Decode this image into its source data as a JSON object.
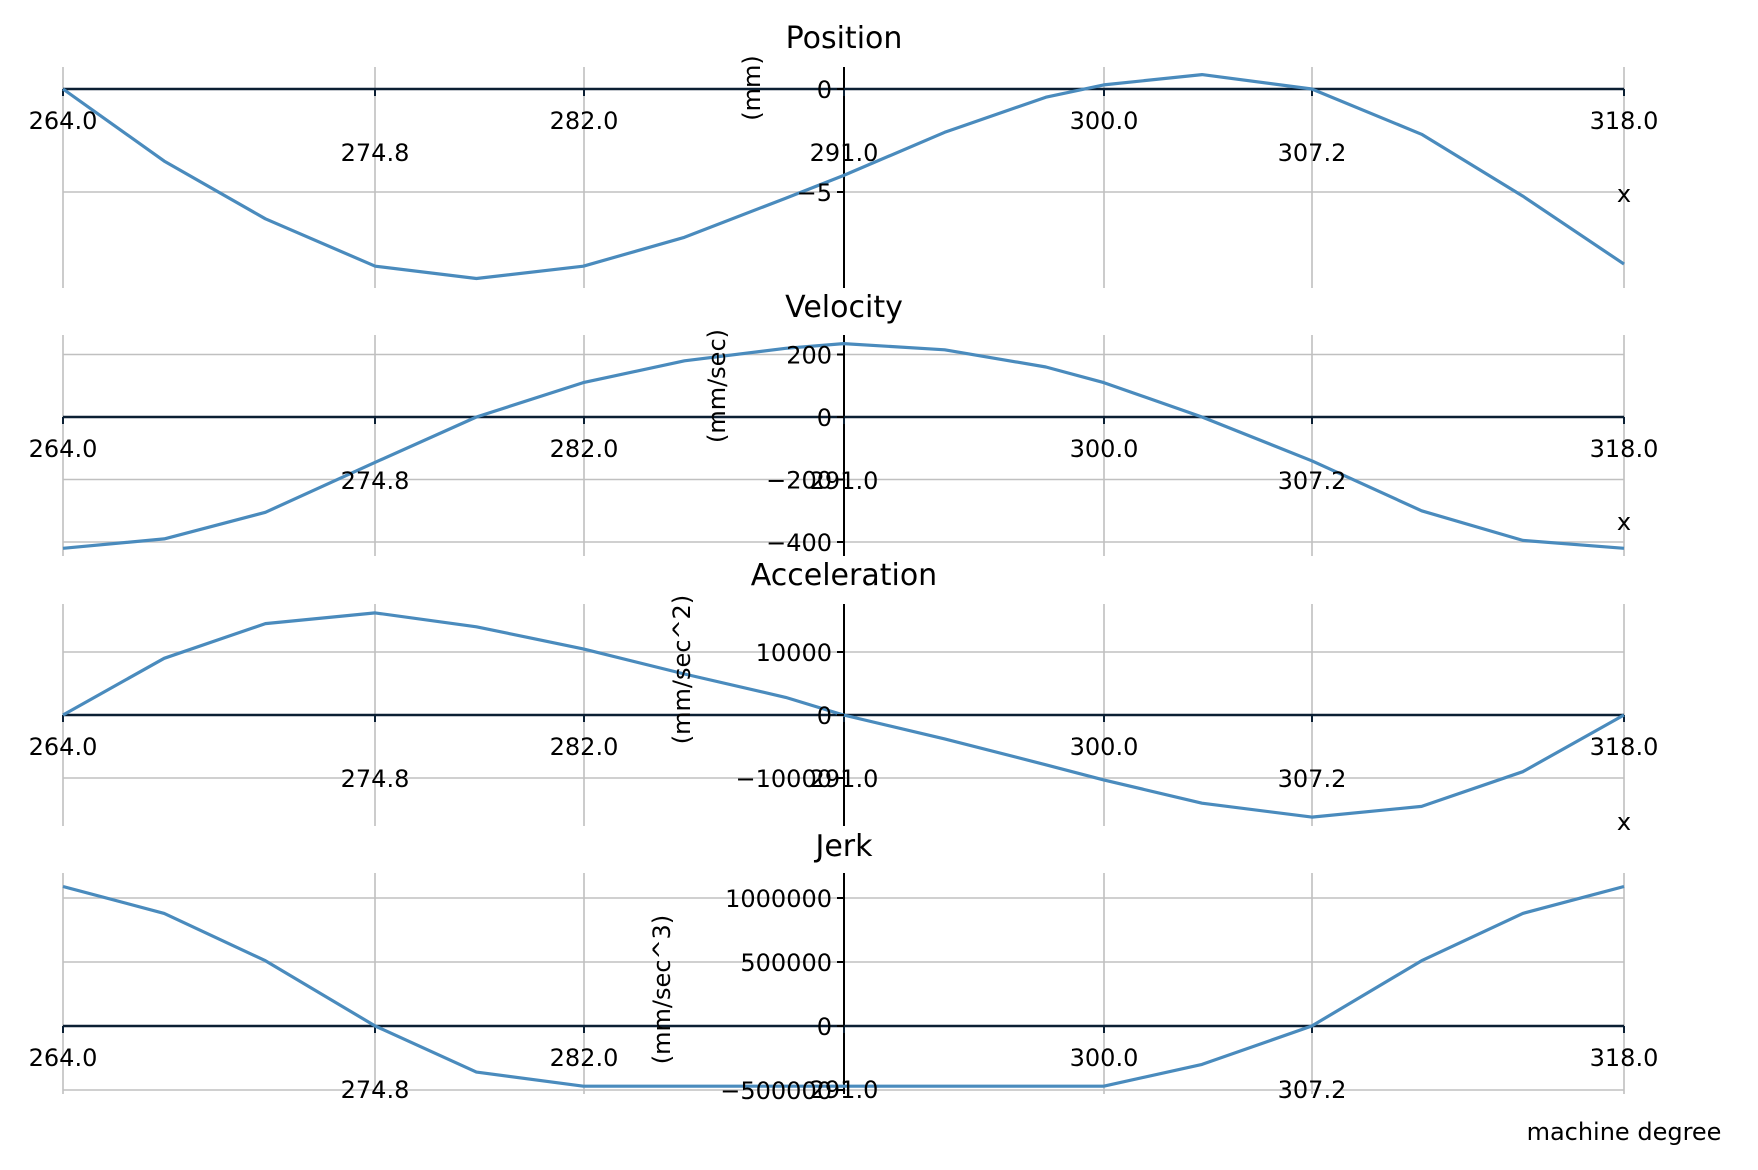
{
  "colors": {
    "curve": "#4a8bbd",
    "axis": "#0b1f33",
    "grid": "#c0c0c0"
  },
  "chart_data": [
    {
      "type": "line",
      "title": "Position",
      "ylabel": "(mm)",
      "xlabel": "x",
      "xlim": [
        264,
        318
      ],
      "ylim": [
        -10,
        1.5
      ],
      "x_ticks_major": [
        "264.0",
        "282.0",
        "300.0",
        "318.0"
      ],
      "x_ticks_minor": [
        "274.8",
        "291.0",
        "307.2"
      ],
      "y_ticks": [
        {
          "value": 0,
          "label": "0"
        },
        {
          "value": -5,
          "label": "−5"
        }
      ],
      "y_gridlines": [
        0,
        -5
      ],
      "series": [
        {
          "x": [
            264.0,
            267.5,
            271.0,
            274.8,
            278.3,
            282.0,
            285.5,
            289.0,
            291.0,
            294.5,
            298.0,
            300.0,
            303.4,
            307.2,
            311.0,
            314.5,
            318.0
          ],
          "y": [
            0.0,
            -3.5,
            -6.3,
            -8.6,
            -9.2,
            -8.6,
            -7.2,
            -5.3,
            -4.2,
            -2.1,
            -0.4,
            0.2,
            0.7,
            0.0,
            -2.2,
            -5.2,
            -8.5
          ]
        }
      ]
    },
    {
      "type": "line",
      "title": "Velocity",
      "ylabel": "(mm/sec)",
      "xlabel": "x",
      "xlim": [
        264,
        318
      ],
      "ylim": [
        -450,
        270
      ],
      "x_ticks_major": [
        "264.0",
        "282.0",
        "300.0",
        "318.0"
      ],
      "x_ticks_minor": [
        "274.8",
        "291.0",
        "307.2"
      ],
      "y_ticks": [
        {
          "value": 200,
          "label": "200"
        },
        {
          "value": 0,
          "label": "0"
        },
        {
          "value": -200,
          "label": "−200"
        },
        {
          "value": -400,
          "label": "−400"
        }
      ],
      "y_gridlines": [
        200,
        0,
        -200,
        -400
      ],
      "series": [
        {
          "x": [
            264.0,
            267.5,
            271.0,
            274.8,
            278.3,
            282.0,
            285.5,
            289.0,
            291.0,
            294.5,
            298.0,
            300.0,
            303.4,
            307.2,
            311.0,
            314.5,
            318.0
          ],
          "y": [
            -420,
            -390,
            -305,
            -145,
            0,
            110,
            180,
            220,
            235,
            215,
            160,
            110,
            0,
            -140,
            -300,
            -395,
            -420
          ]
        }
      ]
    },
    {
      "type": "line",
      "title": "Acceleration",
      "ylabel": "(mm/sec^2)",
      "xlabel": "x",
      "xlim": [
        264,
        318
      ],
      "ylim": [
        -18000,
        18000
      ],
      "x_ticks_major": [
        "264.0",
        "282.0",
        "300.0",
        "318.0"
      ],
      "x_ticks_minor": [
        "274.8",
        "291.0",
        "307.2"
      ],
      "y_ticks": [
        {
          "value": 10000,
          "label": "10000"
        },
        {
          "value": 0,
          "label": "0"
        },
        {
          "value": -10000,
          "label": "−10000"
        }
      ],
      "y_gridlines": [
        10000,
        0,
        -10000
      ],
      "series": [
        {
          "x": [
            264.0,
            267.5,
            271.0,
            274.8,
            278.3,
            282.0,
            285.5,
            289.0,
            291.0,
            294.5,
            298.0,
            300.0,
            303.4,
            307.2,
            311.0,
            314.5,
            318.0
          ],
          "y": [
            0,
            9000,
            14500,
            16200,
            14000,
            10500,
            6500,
            2800,
            0,
            -3800,
            -7900,
            -10300,
            -14000,
            -16200,
            -14500,
            -9000,
            0
          ]
        }
      ]
    },
    {
      "type": "line",
      "title": "Jerk",
      "ylabel": "(mm/sec^3)",
      "xlabel": "machine degree",
      "xlim": [
        264,
        318
      ],
      "ylim": [
        -550000,
        1180000
      ],
      "x_ticks_major": [
        "264.0",
        "282.0",
        "300.0",
        "318.0"
      ],
      "x_ticks_minor": [
        "274.8",
        "291.0",
        "307.2"
      ],
      "y_ticks": [
        {
          "value": 1000000,
          "label": "1000000"
        },
        {
          "value": 500000,
          "label": "500000"
        },
        {
          "value": 0,
          "label": "0"
        },
        {
          "value": -500000,
          "label": "−500000"
        }
      ],
      "y_gridlines": [
        1000000,
        500000,
        0,
        -500000
      ],
      "series": [
        {
          "x": [
            264.0,
            267.5,
            271.0,
            274.8,
            278.3,
            282.0,
            285.5,
            289.0,
            291.0,
            294.5,
            298.0,
            300.0,
            303.4,
            307.2,
            311.0,
            314.5,
            318.0
          ],
          "y": [
            1090000,
            880000,
            510000,
            0,
            -360000,
            -470000,
            -470000,
            -470000,
            -470000,
            -470000,
            -470000,
            -470000,
            -300000,
            0,
            510000,
            880000,
            1090000
          ]
        }
      ]
    }
  ]
}
